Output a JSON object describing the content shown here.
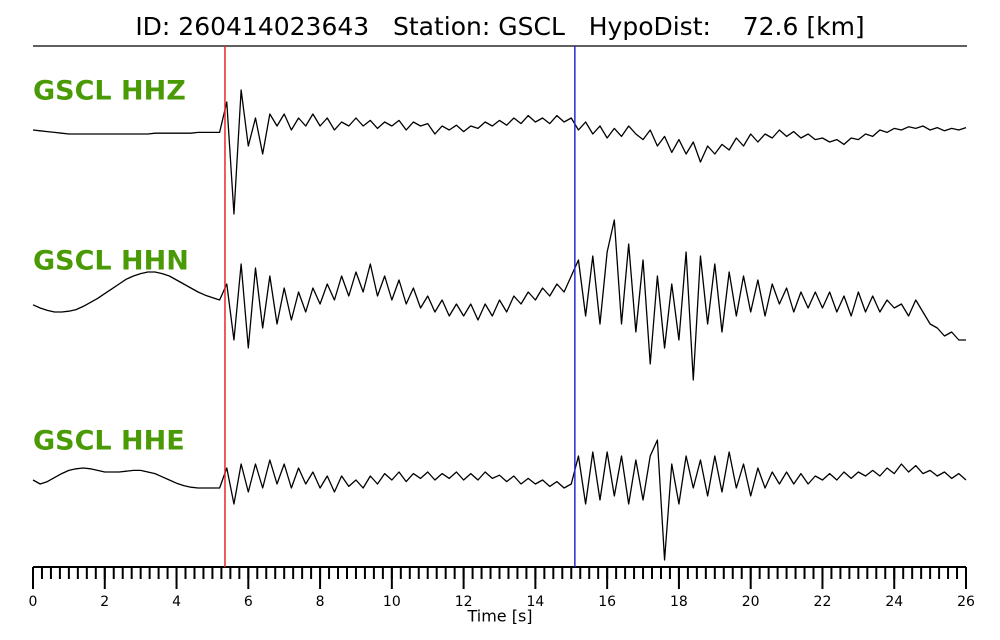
{
  "chart_data": {
    "type": "seismogram",
    "title": "ID: 260414023643   Station: GSCL   HypoDist:    72.6 [km]",
    "xlabel": "Time [s]",
    "xlim": [
      0,
      26
    ],
    "xticks": [
      0,
      2,
      4,
      6,
      8,
      10,
      12,
      14,
      16,
      18,
      20,
      22,
      24,
      26
    ],
    "xminor": 0.25,
    "ylim": [
      -1.2,
      1.2
    ],
    "label_color": "#4a9a06",
    "picks": [
      {
        "x": 5.35,
        "color": "#e8262b"
      },
      {
        "x": 15.1,
        "color": "#2a2acf"
      }
    ],
    "x": [
      0,
      0.2,
      0.4,
      0.6,
      0.8,
      1,
      1.2,
      1.4,
      1.6,
      1.8,
      2,
      2.2,
      2.4,
      2.6,
      2.8,
      3,
      3.2,
      3.4,
      3.6,
      3.8,
      4,
      4.2,
      4.4,
      4.6,
      4.8,
      5,
      5.2,
      5.4,
      5.6,
      5.8,
      6,
      6.2,
      6.4,
      6.6,
      6.8,
      7,
      7.2,
      7.4,
      7.6,
      7.8,
      8,
      8.2,
      8.4,
      8.6,
      8.8,
      9,
      9.2,
      9.4,
      9.6,
      9.8,
      10,
      10.2,
      10.4,
      10.6,
      10.8,
      11,
      11.2,
      11.4,
      11.6,
      11.8,
      12,
      12.2,
      12.4,
      12.6,
      12.8,
      13,
      13.2,
      13.4,
      13.6,
      13.8,
      14,
      14.2,
      14.4,
      14.6,
      14.8,
      15,
      15.2,
      15.4,
      15.6,
      15.8,
      16,
      16.2,
      16.4,
      16.6,
      16.8,
      17,
      17.2,
      17.4,
      17.6,
      17.8,
      18,
      18.2,
      18.4,
      18.6,
      18.8,
      19,
      19.2,
      19.4,
      19.6,
      19.8,
      20,
      20.2,
      20.4,
      20.6,
      20.8,
      21,
      21.2,
      21.4,
      21.6,
      21.8,
      22,
      22.2,
      22.4,
      22.6,
      22.8,
      23,
      23.2,
      23.4,
      23.6,
      23.8,
      24,
      24.2,
      24.4,
      24.6,
      24.8,
      25,
      25.2,
      25.4,
      25.6,
      25.8,
      26
    ],
    "series": [
      {
        "name": "GSCL HHZ",
        "color": "#000000",
        "values": [
          0,
          -0.01,
          -0.02,
          -0.03,
          -0.04,
          -0.05,
          -0.05,
          -0.05,
          -0.05,
          -0.05,
          -0.05,
          -0.05,
          -0.05,
          -0.05,
          -0.05,
          -0.05,
          -0.05,
          -0.04,
          -0.04,
          -0.04,
          -0.04,
          -0.04,
          -0.04,
          -0.03,
          -0.03,
          -0.03,
          -0.03,
          0.35,
          -1.05,
          0.5,
          -0.2,
          0.15,
          -0.3,
          0.2,
          0.05,
          0.2,
          0,
          0.15,
          0.05,
          0.2,
          0.05,
          0.15,
          0,
          0.1,
          0.05,
          0.15,
          0.05,
          0.12,
          0.02,
          0.1,
          0.05,
          0.12,
          0,
          0.1,
          0.05,
          0.08,
          -0.05,
          0.05,
          0,
          0.06,
          -0.02,
          0.05,
          0.02,
          0.1,
          0.05,
          0.12,
          0.06,
          0.15,
          0.08,
          0.18,
          0.1,
          0.15,
          0.08,
          0.18,
          0.1,
          0.15,
          0,
          0.1,
          -0.05,
          0.05,
          -0.1,
          0.02,
          -0.08,
          0.05,
          -0.05,
          -0.12,
          0,
          -0.2,
          -0.08,
          -0.28,
          -0.12,
          -0.3,
          -0.15,
          -0.4,
          -0.2,
          -0.3,
          -0.18,
          -0.25,
          -0.1,
          -0.2,
          -0.05,
          -0.15,
          -0.05,
          -0.1,
          0,
          -0.08,
          -0.02,
          -0.1,
          -0.05,
          -0.12,
          -0.1,
          -0.15,
          -0.12,
          -0.18,
          -0.1,
          -0.12,
          -0.05,
          -0.08,
          0,
          -0.03,
          0.02,
          0,
          0.04,
          0.02,
          0.05,
          0,
          0.03,
          -0.01,
          0.02,
          0,
          0.03
        ]
      },
      {
        "name": "GSCL HHN",
        "color": "#000000",
        "values": [
          -0.06,
          -0.1,
          -0.13,
          -0.15,
          -0.15,
          -0.14,
          -0.12,
          -0.08,
          -0.03,
          0.02,
          0.08,
          0.14,
          0.2,
          0.26,
          0.3,
          0.33,
          0.35,
          0.35,
          0.33,
          0.3,
          0.25,
          0.2,
          0.15,
          0.1,
          0.06,
          0.03,
          0,
          0.2,
          -0.5,
          0.45,
          -0.6,
          0.4,
          -0.35,
          0.3,
          -0.3,
          0.15,
          -0.25,
          0.1,
          -0.15,
          0.15,
          -0.05,
          0.2,
          0,
          0.3,
          0.05,
          0.35,
          0.1,
          0.45,
          0.05,
          0.3,
          0,
          0.25,
          -0.05,
          0.15,
          -0.1,
          0.05,
          -0.15,
          0,
          -0.2,
          -0.05,
          -0.2,
          -0.05,
          -0.25,
          -0.05,
          -0.2,
          0,
          -0.15,
          0.05,
          -0.05,
          0.1,
          0,
          0.15,
          0.05,
          0.2,
          0.1,
          0.3,
          0.5,
          -0.2,
          0.55,
          -0.3,
          0.6,
          1,
          -0.3,
          0.7,
          -0.4,
          0.5,
          -0.8,
          0.3,
          -0.6,
          0.2,
          -0.5,
          0.6,
          -1,
          0.55,
          -0.3,
          0.45,
          -0.4,
          0.35,
          -0.2,
          0.3,
          -0.15,
          0.25,
          -0.2,
          0.2,
          -0.05,
          0.15,
          -0.15,
          0.1,
          -0.1,
          0.1,
          -0.1,
          0.1,
          -0.15,
          0.05,
          -0.2,
          0.1,
          -0.15,
          0.05,
          -0.15,
          0,
          -0.1,
          -0.05,
          -0.2,
          0,
          -0.15,
          -0.3,
          -0.35,
          -0.45,
          -0.4,
          -0.5,
          -0.5
        ]
      },
      {
        "name": "GSCL HHE",
        "color": "#000000",
        "values": [
          0,
          -0.05,
          -0.02,
          0.03,
          0.08,
          0.12,
          0.14,
          0.15,
          0.14,
          0.12,
          0.1,
          0.1,
          0.1,
          0.11,
          0.12,
          0.12,
          0.1,
          0.08,
          0.04,
          0,
          -0.04,
          -0.07,
          -0.09,
          -0.1,
          -0.1,
          -0.1,
          -0.1,
          0.15,
          -0.3,
          0.2,
          -0.15,
          0.2,
          -0.1,
          0.25,
          -0.05,
          0.2,
          -0.1,
          0.15,
          -0.05,
          0.1,
          -0.1,
          0.05,
          -0.15,
          0.05,
          -0.08,
          0,
          -0.1,
          0.05,
          -0.05,
          0.08,
          0,
          0.1,
          -0.02,
          0.08,
          0.02,
          0.1,
          0,
          0.08,
          0.02,
          0.1,
          0,
          0.08,
          0,
          0.1,
          0.02,
          0.06,
          -0.02,
          0.05,
          -0.05,
          0.02,
          -0.05,
          0,
          -0.08,
          -0.02,
          -0.1,
          -0.05,
          0.3,
          -0.3,
          0.35,
          -0.25,
          0.35,
          -0.2,
          0.3,
          -0.3,
          0.25,
          -0.25,
          0.3,
          0.5,
          -1,
          0.2,
          -0.3,
          0.3,
          -0.1,
          0.25,
          -0.2,
          0.3,
          -0.15,
          0.35,
          -0.1,
          0.2,
          -0.2,
          0.15,
          -0.1,
          0.1,
          -0.05,
          0.1,
          -0.05,
          0.08,
          -0.05,
          0.05,
          0,
          0.08,
          0,
          0.1,
          0.02,
          0.1,
          0.05,
          0.12,
          0.05,
          0.15,
          0.08,
          0.2,
          0.1,
          0.18,
          0.08,
          0.12,
          0.05,
          0.1,
          0.02,
          0.08,
          0
        ]
      }
    ]
  }
}
